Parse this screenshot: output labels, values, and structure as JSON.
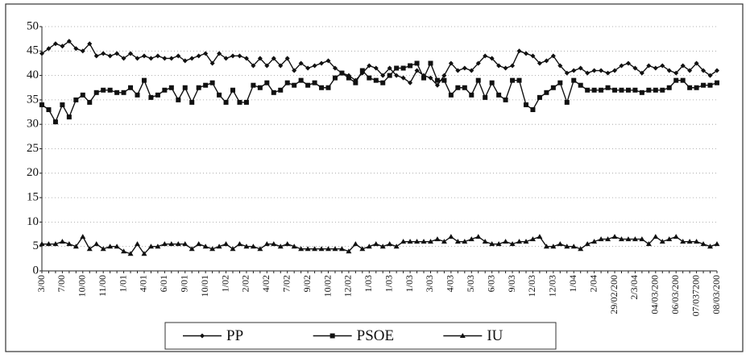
{
  "chart_data": {
    "type": "line",
    "categories": [
      "3/00",
      null,
      null,
      "7/00",
      null,
      null,
      "10/00",
      null,
      null,
      "11/00",
      null,
      null,
      "1/01",
      null,
      null,
      "4/01",
      null,
      null,
      "6/01",
      null,
      null,
      "9/01",
      null,
      null,
      "10/01",
      null,
      null,
      "1/02",
      null,
      null,
      "2/02",
      null,
      null,
      "4/02",
      null,
      null,
      "7/02",
      null,
      null,
      "9/02",
      null,
      null,
      "10/02",
      null,
      null,
      "12/02",
      null,
      null,
      "1/03",
      null,
      null,
      "1/03",
      null,
      null,
      "1/03",
      null,
      null,
      "3/03",
      null,
      null,
      "4/03",
      null,
      null,
      "5/03",
      null,
      null,
      "6/03",
      null,
      null,
      "9/03",
      null,
      null,
      "12/03",
      null,
      null,
      "12/03",
      null,
      null,
      "1/04",
      null,
      null,
      "2/04",
      null,
      null,
      "29/02/200",
      null,
      null,
      "2/3/04",
      null,
      null,
      "04/03/200",
      null,
      null,
      "06/03/200",
      null,
      null,
      "07/037200",
      null,
      null,
      "08/03/200"
    ],
    "series": [
      {
        "name": "PP",
        "color": "#111111",
        "marker": "diamond",
        "values": [
          44.5,
          45.5,
          46.5,
          46,
          47,
          45.5,
          45,
          46.5,
          44,
          44.5,
          44,
          44.5,
          43.5,
          44.5,
          43.5,
          44,
          43.5,
          44,
          43.5,
          43.5,
          44,
          43,
          43.5,
          44,
          44.5,
          42.5,
          44.5,
          43.5,
          44,
          44,
          43.5,
          42,
          43.5,
          42,
          43.5,
          42,
          43.5,
          41,
          42.5,
          41.5,
          42,
          42.5,
          43,
          41.5,
          40.5,
          40,
          39,
          40.5,
          42,
          41.5,
          40,
          41.5,
          40,
          39.5,
          38.5,
          41,
          40,
          39.5,
          38,
          40,
          42.5,
          41,
          41.5,
          41,
          42.5,
          44,
          43.5,
          42,
          41.5,
          42,
          45,
          44.5,
          44,
          42.5,
          43,
          44,
          42,
          40.5,
          41,
          41.5,
          40.5,
          41,
          41,
          40.5,
          41,
          42,
          42.5,
          41.5,
          40.5,
          42,
          41.5,
          42,
          41,
          40.5,
          42,
          41,
          42.5,
          41,
          40,
          41
        ]
      },
      {
        "name": "PSOE",
        "color": "#111111",
        "marker": "square",
        "values": [
          34,
          33,
          30.5,
          34,
          31.5,
          35,
          36,
          34.5,
          36.5,
          37,
          37,
          36.5,
          36.5,
          37.5,
          36,
          39,
          35.5,
          36,
          37,
          37.5,
          35,
          37.5,
          34.5,
          37.5,
          38,
          38.5,
          36,
          34.5,
          37,
          34.5,
          34.5,
          38,
          37.5,
          38.5,
          36.5,
          37,
          38.5,
          38,
          39,
          38,
          38.5,
          37.5,
          37.5,
          39.5,
          40.5,
          39.5,
          38.5,
          41,
          39.5,
          39,
          38.5,
          40,
          41.5,
          41.5,
          42,
          42.5,
          39.5,
          42.5,
          39,
          39,
          36,
          37.5,
          37.5,
          36,
          39,
          35.5,
          38.5,
          36,
          35,
          39,
          39,
          34,
          33,
          35.5,
          36.5,
          37.5,
          38.5,
          34.5,
          39,
          38,
          37,
          37,
          37,
          37.5,
          37,
          37,
          37,
          37,
          36.5,
          37,
          37,
          37,
          37.5,
          39,
          39,
          37.5,
          37.5,
          38,
          38,
          38.5
        ]
      },
      {
        "name": "IU",
        "color": "#111111",
        "marker": "triangle",
        "values": [
          5.5,
          5.5,
          5.5,
          6,
          5.5,
          5,
          7,
          4.5,
          5.5,
          4.5,
          5,
          5,
          4,
          3.5,
          5.5,
          3.5,
          5,
          5,
          5.5,
          5.5,
          5.5,
          5.5,
          4.5,
          5.5,
          5,
          4.5,
          5,
          5.5,
          4.5,
          5.5,
          5,
          5,
          4.5,
          5.5,
          5.5,
          5,
          5.5,
          5,
          4.5,
          4.5,
          4.5,
          4.5,
          4.5,
          4.5,
          4.5,
          4,
          5.5,
          4.5,
          5,
          5.5,
          5,
          5.5,
          5,
          6,
          6,
          6,
          6,
          6,
          6.5,
          6,
          7,
          6,
          6,
          6.5,
          7,
          6,
          5.5,
          5.5,
          6,
          5.5,
          6,
          6,
          6.5,
          7,
          5,
          5,
          5.5,
          5,
          5,
          4.5,
          5.5,
          6,
          6.5,
          6.5,
          7,
          6.5,
          6.5,
          6.5,
          6.5,
          5.5,
          7,
          6,
          6.5,
          7,
          6,
          6,
          6,
          5.5,
          5,
          5.5
        ]
      }
    ],
    "ylim": [
      0,
      50
    ],
    "yticks": [
      0,
      5,
      10,
      15,
      20,
      25,
      30,
      35,
      40,
      45,
      50
    ],
    "grid": true,
    "legend": "bottom"
  }
}
